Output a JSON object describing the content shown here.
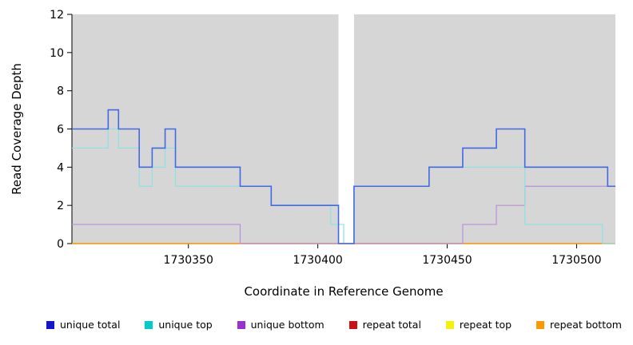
{
  "chart_data": {
    "type": "line",
    "subtype": "step",
    "title": "",
    "xlabel": "Coordinate in Reference Genome",
    "ylabel": "Read Coverage Depth",
    "xlim": [
      1730305,
      1730515
    ],
    "ylim": [
      0,
      12
    ],
    "xticks": [
      "1730350",
      "1730400",
      "1730450",
      "1730500"
    ],
    "xtick_values": [
      1730350,
      1730400,
      1730450,
      1730500
    ],
    "yticks": [
      0,
      2,
      4,
      6,
      8,
      10,
      12
    ],
    "grid": false,
    "legend_position": "bottom",
    "panel_color": "#d6d6d6",
    "axis_color": "#000000",
    "gap_band": {
      "x_start": 1730408,
      "x_end": 1730414,
      "color": "#ffffff"
    },
    "series": [
      {
        "name": "unique total",
        "legend_color": "#1414c8",
        "line_color": "#4169e1",
        "line_width": 1.6,
        "z": 6,
        "steps": [
          [
            1730305,
            6
          ],
          [
            1730319,
            7
          ],
          [
            1730323,
            6
          ],
          [
            1730331,
            4
          ],
          [
            1730336,
            5
          ],
          [
            1730341,
            6
          ],
          [
            1730345,
            4
          ],
          [
            1730370,
            3
          ],
          [
            1730382,
            2
          ],
          [
            1730408,
            0
          ],
          [
            1730414,
            3
          ],
          [
            1730443,
            4
          ],
          [
            1730456,
            5
          ],
          [
            1730469,
            6
          ],
          [
            1730480,
            4
          ],
          [
            1730512,
            3
          ]
        ]
      },
      {
        "name": "unique top",
        "legend_color": "#00cccc",
        "line_color": "#8ce2e2",
        "line_width": 1.2,
        "z": 5,
        "steps": [
          [
            1730305,
            5
          ],
          [
            1730319,
            6
          ],
          [
            1730323,
            5
          ],
          [
            1730331,
            3
          ],
          [
            1730336,
            4
          ],
          [
            1730341,
            5
          ],
          [
            1730345,
            3
          ],
          [
            1730382,
            2
          ],
          [
            1730405,
            1
          ],
          [
            1730410,
            0
          ],
          [
            1730414,
            3
          ],
          [
            1730443,
            4
          ],
          [
            1730480,
            1
          ],
          [
            1730510,
            0
          ]
        ]
      },
      {
        "name": "unique bottom",
        "legend_color": "#9b30d0",
        "line_color": "#b98fd9",
        "line_width": 1.2,
        "z": 4,
        "steps": [
          [
            1730305,
            1
          ],
          [
            1730370,
            0
          ],
          [
            1730456,
            1
          ],
          [
            1730469,
            2
          ],
          [
            1730480,
            3
          ]
        ]
      },
      {
        "name": "repeat total",
        "legend_color": "#cc1111",
        "line_color": "#cc1111",
        "line_width": 1.2,
        "z": 1,
        "steps": [
          [
            1730305,
            0
          ]
        ]
      },
      {
        "name": "repeat top",
        "legend_color": "#f2f20a",
        "line_color": "#f2f20a",
        "line_width": 1.2,
        "z": 2,
        "steps": [
          [
            1730305,
            0
          ]
        ]
      },
      {
        "name": "repeat bottom",
        "legend_color": "#ff9900",
        "line_color": "#ff9900",
        "line_width": 1.2,
        "z": 3,
        "steps": [
          [
            1730305,
            0
          ]
        ]
      }
    ]
  }
}
